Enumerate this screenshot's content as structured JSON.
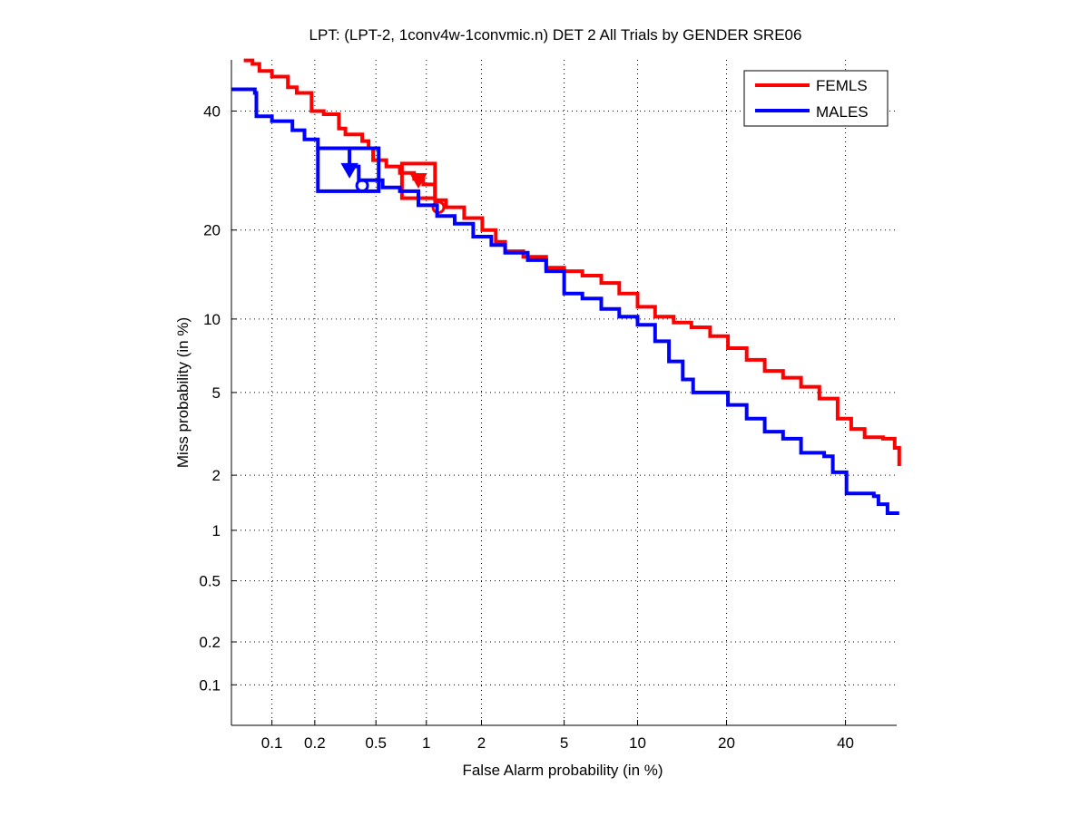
{
  "chart_data": {
    "type": "line",
    "scale": "probit",
    "title": "LPT: (LPT-2, 1conv4w-1convmic.n) DET 2 All Trials by GENDER SRE06",
    "xlabel": "False Alarm probability (in %)",
    "ylabel": "Miss probability (in %)",
    "xlim": [
      0.05,
      50
    ],
    "ylim": [
      0.05,
      50
    ],
    "grid": true,
    "legend_position": "top-right",
    "xticks": [
      0.1,
      0.2,
      0.5,
      1,
      2,
      5,
      10,
      20,
      40
    ],
    "xtick_labels": [
      "0.1",
      "0.2",
      "0.5",
      "1",
      "2",
      "5",
      "10",
      "20",
      "40"
    ],
    "yticks": [
      0.1,
      0.2,
      0.5,
      1,
      2,
      5,
      10,
      20,
      40
    ],
    "ytick_labels": [
      "0.1",
      "0.2",
      "0.5",
      "1",
      "2",
      "5",
      "10",
      "20",
      "40"
    ],
    "series": [
      {
        "name": "FEMLS",
        "color": "#ff0000",
        "x": [
          0.062,
          0.072,
          0.081,
          0.1,
          0.13,
          0.15,
          0.19,
          0.23,
          0.29,
          0.32,
          0.41,
          0.45,
          0.48,
          0.58,
          0.7,
          0.85,
          0.96,
          1.12,
          1.29,
          1.62,
          2.02,
          2.37,
          2.64,
          3.24,
          4.15,
          5.0,
          6.0,
          7.2,
          8.5,
          10.0,
          11.6,
          13.5,
          15.5,
          17.8,
          20.2,
          22.9,
          25.7,
          28.7,
          31.8,
          35.1,
          38.5,
          41.1,
          43.7,
          47.3,
          49.6,
          50.5
        ],
        "y": [
          49.9,
          49.2,
          47.8,
          46.7,
          44.6,
          43.5,
          40.0,
          39.4,
          36.7,
          35.6,
          34.4,
          33.1,
          31.0,
          29.9,
          28.8,
          27.8,
          26.9,
          24.4,
          23.3,
          21.7,
          20.0,
          18.4,
          17.2,
          16.5,
          15.2,
          14.8,
          14.3,
          13.5,
          12.4,
          11.1,
          10.2,
          9.7,
          9.3,
          8.6,
          7.7,
          6.9,
          6.2,
          5.8,
          5.3,
          4.7,
          3.8,
          3.4,
          3.1,
          3.05,
          2.75,
          2.23
        ],
        "actual_point": {
          "x": 0.9,
          "y": 27.7,
          "marker": "triangle"
        },
        "min_point": {
          "x": 1.17,
          "y": 23.3,
          "marker": "circle"
        },
        "confidence_box": {
          "x": [
            0.72,
            1.12
          ],
          "y": [
            24.7,
            30.4
          ]
        }
      },
      {
        "name": "MALES",
        "color": "#0000ff",
        "x": [
          0.05,
          0.075,
          0.077,
          0.1,
          0.14,
          0.17,
          0.21,
          0.32,
          0.34,
          0.39,
          0.55,
          0.7,
          0.9,
          1.15,
          1.44,
          1.81,
          2.25,
          2.64,
          3.4,
          4.15,
          5.0,
          6.0,
          7.2,
          8.5,
          10.0,
          11.6,
          13.0,
          14.5,
          15.7,
          18.4,
          20.2,
          22.9,
          25.7,
          28.7,
          31.8,
          36.0,
          37.6,
          40.2,
          45.5,
          46.4,
          48.2,
          50.5
        ],
        "y": [
          44.2,
          43.5,
          39.0,
          38.1,
          36.4,
          34.7,
          33.1,
          33.1,
          29.9,
          27.6,
          26.4,
          25.8,
          23.6,
          22.0,
          20.9,
          19.1,
          18.0,
          17.0,
          16.1,
          14.8,
          12.4,
          11.9,
          10.9,
          10.2,
          9.5,
          8.2,
          6.8,
          5.7,
          5.0,
          5.0,
          4.4,
          3.8,
          3.3,
          3.05,
          2.6,
          2.5,
          2.07,
          1.6,
          1.55,
          1.4,
          1.25,
          1.25
        ],
        "actual_point": {
          "x": 0.34,
          "y": 29.4,
          "marker": "triangle"
        },
        "min_point": {
          "x": 0.41,
          "y": 26.7,
          "marker": "circle"
        },
        "confidence_box": {
          "x": [
            0.21,
            0.52
          ],
          "y": [
            25.8,
            33.1
          ]
        }
      }
    ]
  }
}
